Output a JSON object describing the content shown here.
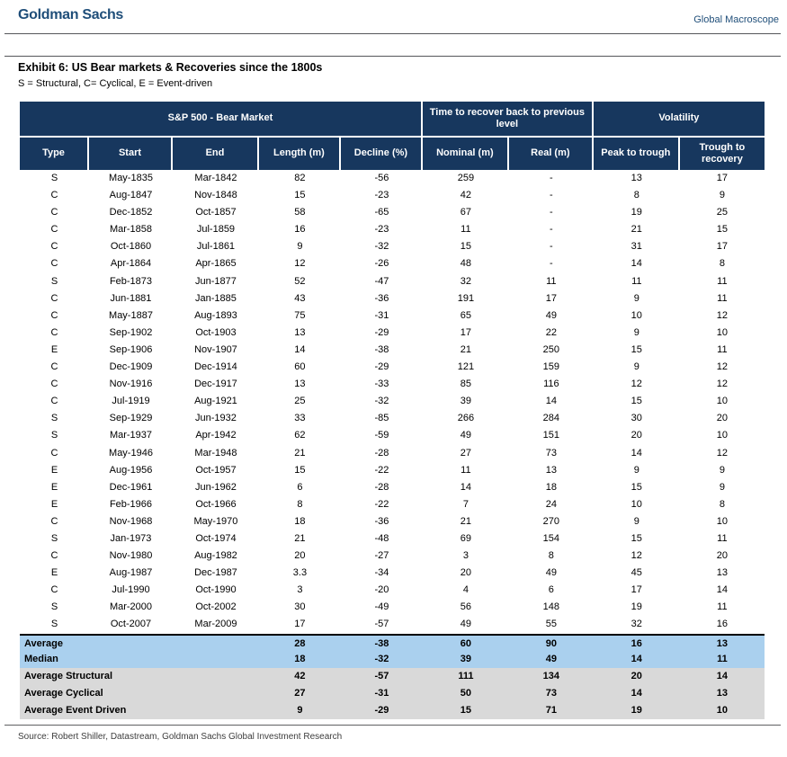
{
  "header": {
    "brand": "Goldman Sachs",
    "publication": "Global Macroscope"
  },
  "exhibit": {
    "title": "Exhibit 6: US Bear markets & Recoveries since the 1800s",
    "legend": "S = Structural, C= Cyclical, E = Event-driven"
  },
  "colors": {
    "brand": "#1F4E79",
    "navy": "#17375E",
    "summary_blue": "#AAD0EE",
    "summary_gray": "#D9D9D9"
  },
  "table": {
    "groups": [
      {
        "label": "S&P 500 - Bear Market",
        "span": 5
      },
      {
        "label": "Time to recover back to previous level",
        "span": 2
      },
      {
        "label": "Volatility",
        "span": 2
      }
    ],
    "columns": [
      "Type",
      "Start",
      "End",
      "Length (m)",
      "Decline (%)",
      "Nominal (m)",
      "Real (m)",
      "Peak to trough",
      "Trough to recovery"
    ],
    "rows": [
      [
        "S",
        "May-1835",
        "Mar-1842",
        "82",
        "-56",
        "259",
        "-",
        "13",
        "17"
      ],
      [
        "C",
        "Aug-1847",
        "Nov-1848",
        "15",
        "-23",
        "42",
        "-",
        "8",
        "9"
      ],
      [
        "C",
        "Dec-1852",
        "Oct-1857",
        "58",
        "-65",
        "67",
        "-",
        "19",
        "25"
      ],
      [
        "C",
        "Mar-1858",
        "Jul-1859",
        "16",
        "-23",
        "11",
        "-",
        "21",
        "15"
      ],
      [
        "C",
        "Oct-1860",
        "Jul-1861",
        "9",
        "-32",
        "15",
        "-",
        "31",
        "17"
      ],
      [
        "C",
        "Apr-1864",
        "Apr-1865",
        "12",
        "-26",
        "48",
        "-",
        "14",
        "8"
      ],
      [
        "S",
        "Feb-1873",
        "Jun-1877",
        "52",
        "-47",
        "32",
        "11",
        "11",
        "11"
      ],
      [
        "C",
        "Jun-1881",
        "Jan-1885",
        "43",
        "-36",
        "191",
        "17",
        "9",
        "11"
      ],
      [
        "C",
        "May-1887",
        "Aug-1893",
        "75",
        "-31",
        "65",
        "49",
        "10",
        "12"
      ],
      [
        "C",
        "Sep-1902",
        "Oct-1903",
        "13",
        "-29",
        "17",
        "22",
        "9",
        "10"
      ],
      [
        "E",
        "Sep-1906",
        "Nov-1907",
        "14",
        "-38",
        "21",
        "250",
        "15",
        "11"
      ],
      [
        "C",
        "Dec-1909",
        "Dec-1914",
        "60",
        "-29",
        "121",
        "159",
        "9",
        "12"
      ],
      [
        "C",
        "Nov-1916",
        "Dec-1917",
        "13",
        "-33",
        "85",
        "116",
        "12",
        "12"
      ],
      [
        "C",
        "Jul-1919",
        "Aug-1921",
        "25",
        "-32",
        "39",
        "14",
        "15",
        "10"
      ],
      [
        "S",
        "Sep-1929",
        "Jun-1932",
        "33",
        "-85",
        "266",
        "284",
        "30",
        "20"
      ],
      [
        "S",
        "Mar-1937",
        "Apr-1942",
        "62",
        "-59",
        "49",
        "151",
        "20",
        "10"
      ],
      [
        "C",
        "May-1946",
        "Mar-1948",
        "21",
        "-28",
        "27",
        "73",
        "14",
        "12"
      ],
      [
        "E",
        "Aug-1956",
        "Oct-1957",
        "15",
        "-22",
        "11",
        "13",
        "9",
        "9"
      ],
      [
        "E",
        "Dec-1961",
        "Jun-1962",
        "6",
        "-28",
        "14",
        "18",
        "15",
        "9"
      ],
      [
        "E",
        "Feb-1966",
        "Oct-1966",
        "8",
        "-22",
        "7",
        "24",
        "10",
        "8"
      ],
      [
        "C",
        "Nov-1968",
        "May-1970",
        "18",
        "-36",
        "21",
        "270",
        "9",
        "10"
      ],
      [
        "S",
        "Jan-1973",
        "Oct-1974",
        "21",
        "-48",
        "69",
        "154",
        "15",
        "11"
      ],
      [
        "C",
        "Nov-1980",
        "Aug-1982",
        "20",
        "-27",
        "3",
        "8",
        "12",
        "20"
      ],
      [
        "E",
        "Aug-1987",
        "Dec-1987",
        "3.3",
        "-34",
        "20",
        "49",
        "45",
        "13"
      ],
      [
        "C",
        "Jul-1990",
        "Oct-1990",
        "3",
        "-20",
        "4",
        "6",
        "17",
        "14"
      ],
      [
        "S",
        "Mar-2000",
        "Oct-2002",
        "30",
        "-49",
        "56",
        "148",
        "19",
        "11"
      ],
      [
        "S",
        "Oct-2007",
        "Mar-2009",
        "17",
        "-57",
        "49",
        "55",
        "32",
        "16"
      ]
    ],
    "summary": [
      {
        "label": "Average",
        "values": [
          "28",
          "-38",
          "60",
          "90",
          "16",
          "13"
        ],
        "style": "blue"
      },
      {
        "label": "Median",
        "values": [
          "18",
          "-32",
          "39",
          "49",
          "14",
          "11"
        ],
        "style": "blue"
      },
      {
        "label": "Average Structural",
        "values": [
          "42",
          "-57",
          "111",
          "134",
          "20",
          "14"
        ],
        "style": "gray"
      },
      {
        "label": "Average Cyclical",
        "values": [
          "27",
          "-31",
          "50",
          "73",
          "14",
          "13"
        ],
        "style": "gray"
      },
      {
        "label": "Average Event Driven",
        "values": [
          "9",
          "-29",
          "15",
          "71",
          "19",
          "10"
        ],
        "style": "gray"
      }
    ]
  },
  "footer": {
    "source": "Source: Robert Shiller, Datastream, Goldman Sachs Global Investment Research"
  }
}
